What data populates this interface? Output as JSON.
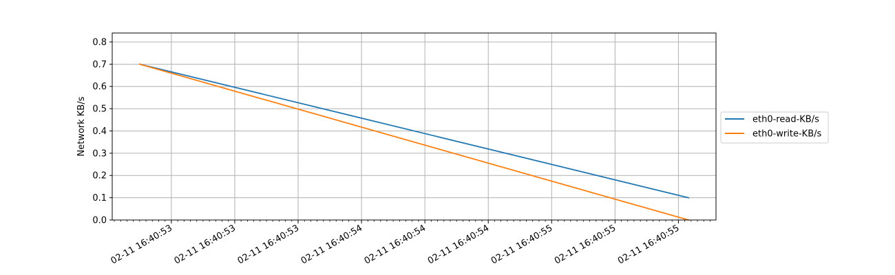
{
  "chart_data": {
    "type": "line",
    "title": "",
    "xlabel": "",
    "ylabel": "Network KB/s",
    "ylim": [
      0,
      0.84
    ],
    "yticks": [
      0.0,
      0.1,
      0.2,
      0.3,
      0.4,
      0.5,
      0.6,
      0.7,
      0.8
    ],
    "ytick_labels": [
      "0.0",
      "0.1",
      "0.2",
      "0.3",
      "0.4",
      "0.5",
      "0.6",
      "0.7",
      "0.8"
    ],
    "xlim": [
      -0.2165,
      4.5465
    ],
    "xticks": [
      0.25,
      0.75,
      1.25,
      1.75,
      2.25,
      2.75,
      3.25,
      3.75,
      4.25
    ],
    "xtick_labels": [
      "02-11 16:40:53",
      "02-11 16:40:53",
      "02-11 16:40:53",
      "02-11 16:40:54",
      "02-11 16:40:54",
      "02-11 16:40:54",
      "02-11 16:40:55",
      "02-11 16:40:55",
      "02-11 16:40:55"
    ],
    "x_minor_step": 0.05,
    "x_unit": "seconds after first sample",
    "grid": true,
    "legend_position": "right",
    "series": [
      {
        "name": "eth0-read-KB/s",
        "color": "#1f77b4",
        "x": [
          0,
          4.33
        ],
        "values": [
          0.7,
          0.1
        ]
      },
      {
        "name": "eth0-write-KB/s",
        "color": "#ff7f0e",
        "x": [
          0,
          4.33
        ],
        "values": [
          0.7,
          0.0
        ]
      }
    ]
  }
}
